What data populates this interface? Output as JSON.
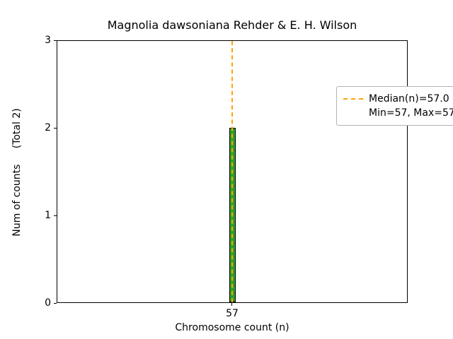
{
  "chart_data": {
    "type": "bar",
    "title": "Magnolia dawsoniana Rehder & E. H. Wilson",
    "xlabel": "Chromosome count (n)",
    "ylabel": "Num of counts     (Total 2)",
    "categories": [
      "57"
    ],
    "values": [
      2
    ],
    "ylim": [
      0,
      3
    ],
    "yticks": [
      "0",
      "1",
      "2",
      "3"
    ],
    "xticks": [
      "57"
    ],
    "grid": false,
    "bar_color": "#2ca02c",
    "bar_edge_color": "#000000",
    "median_line": {
      "x": 57,
      "value": 57.0,
      "color": "#ffa500",
      "style": "dashed"
    },
    "legend": {
      "position": "upper right",
      "entries": [
        {
          "label": "Median(n)=57.0",
          "marker": "dashed-line",
          "color": "#ffa500"
        },
        {
          "label": "Min=57, Max=57",
          "marker": "none"
        }
      ]
    }
  }
}
